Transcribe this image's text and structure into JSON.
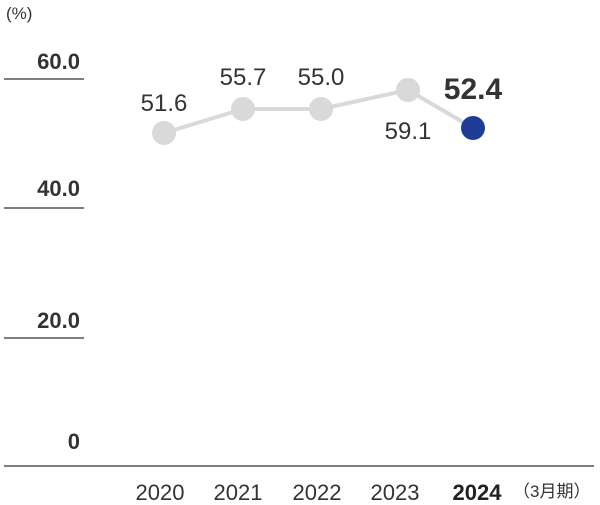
{
  "chart_data": {
    "type": "line",
    "unit_label": "(%)",
    "x_unit_label": "（3月期）",
    "categories": [
      "2020",
      "2021",
      "2022",
      "2023",
      "2024"
    ],
    "values": [
      51.6,
      55.7,
      55.0,
      59.1,
      52.4
    ],
    "data_labels": [
      "51.6",
      "55.7",
      "55.0",
      "59.1",
      "52.4"
    ],
    "highlight_index": 4,
    "y_ticks": [
      "0",
      "20.0",
      "40.0",
      "60.0"
    ],
    "ylim": [
      0,
      60
    ],
    "colors": {
      "line": "#d9d9d9",
      "point": "#d9d9d9",
      "highlight": "#1f3c96",
      "axis": "#555555",
      "text": "#333333"
    },
    "grid": false,
    "legend": "none"
  }
}
